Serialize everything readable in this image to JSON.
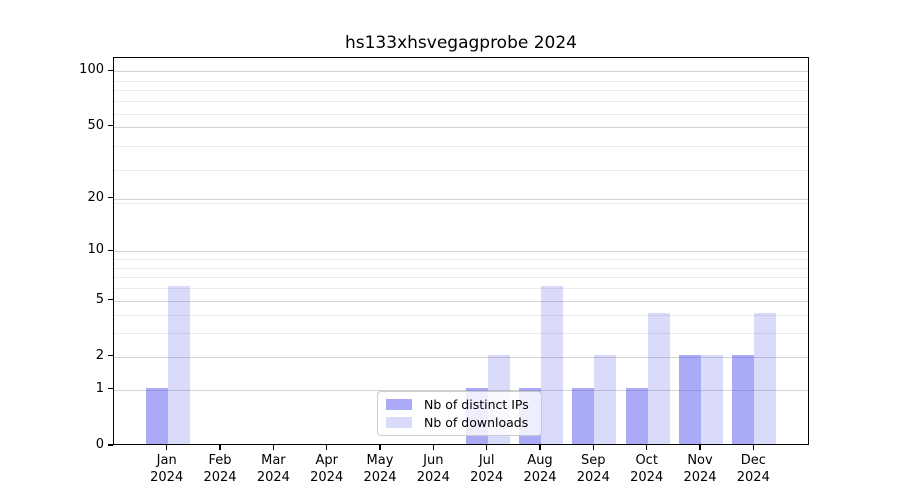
{
  "chart_data": {
    "type": "bar",
    "title": "hs133xhsvegagprobe 2024",
    "categories": [
      "Jan 2024",
      "Feb 2024",
      "Mar 2024",
      "Apr 2024",
      "May 2024",
      "Jun 2024",
      "Jul 2024",
      "Aug 2024",
      "Sep 2024",
      "Oct 2024",
      "Nov 2024",
      "Dec 2024"
    ],
    "months": [
      "Jan",
      "Feb",
      "Mar",
      "Apr",
      "May",
      "Jun",
      "Jul",
      "Aug",
      "Sep",
      "Oct",
      "Nov",
      "Dec"
    ],
    "year": "2024",
    "series": [
      {
        "name": "Nb of distinct IPs",
        "values": [
          1,
          0,
          0,
          0,
          0,
          0,
          1,
          1,
          1,
          1,
          2,
          2
        ],
        "color": "#5555ee",
        "alpha": 0.5
      },
      {
        "name": "Nb of downloads",
        "values": [
          6,
          0,
          0,
          0,
          0,
          0,
          2,
          6,
          2,
          4,
          2,
          4
        ],
        "color": "#5555ee",
        "alpha": 0.22
      }
    ],
    "xlabel": "",
    "ylabel": "",
    "y_axis": {
      "scale": "log10(1+value)",
      "ticks": [
        0,
        1,
        2,
        5,
        10,
        20,
        50,
        100
      ],
      "minor_ticks_1plus_v": [
        4,
        5,
        7,
        8,
        9,
        10,
        20,
        30,
        40,
        60,
        70,
        80,
        90
      ],
      "range_top_value": 118
    },
    "grid": "on",
    "legend": {
      "position": "lower center",
      "items": [
        "Nb of distinct IPs",
        "Nb of downloads"
      ]
    },
    "colors": {
      "grid_major": "#d2d2d2",
      "grid_minor": "#ebebeb",
      "axis": "#000000",
      "legend_border": "#cccccc",
      "background": "#ffffff"
    }
  }
}
